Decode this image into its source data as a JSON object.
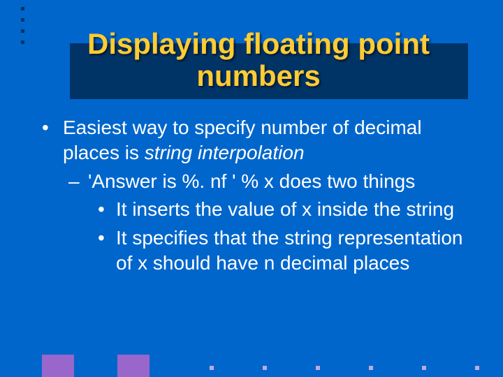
{
  "title": "Displaying floating point numbers",
  "bullets": {
    "l1": {
      "text_pre": "Easiest way to specify number of decimal places is ",
      "text_em": "string interpolation"
    },
    "l2": {
      "text_pre": "'Answer is %. nf ' % x",
      "text_post": "  does two things"
    },
    "l3a": "It inserts the value of x inside the string",
    "l3b": "It specifies that the string representation of x should have n decimal places"
  },
  "colors": {
    "background": "#0066cc",
    "band": "#003366",
    "title": "#ffcc33",
    "body_text": "#ffffff",
    "accent_square": "#9966cc",
    "accent_dot": "#c0a8e0",
    "top_dot": "#003366"
  },
  "fonts": {
    "title_size_pt": 32,
    "body_size_pt": 21
  }
}
